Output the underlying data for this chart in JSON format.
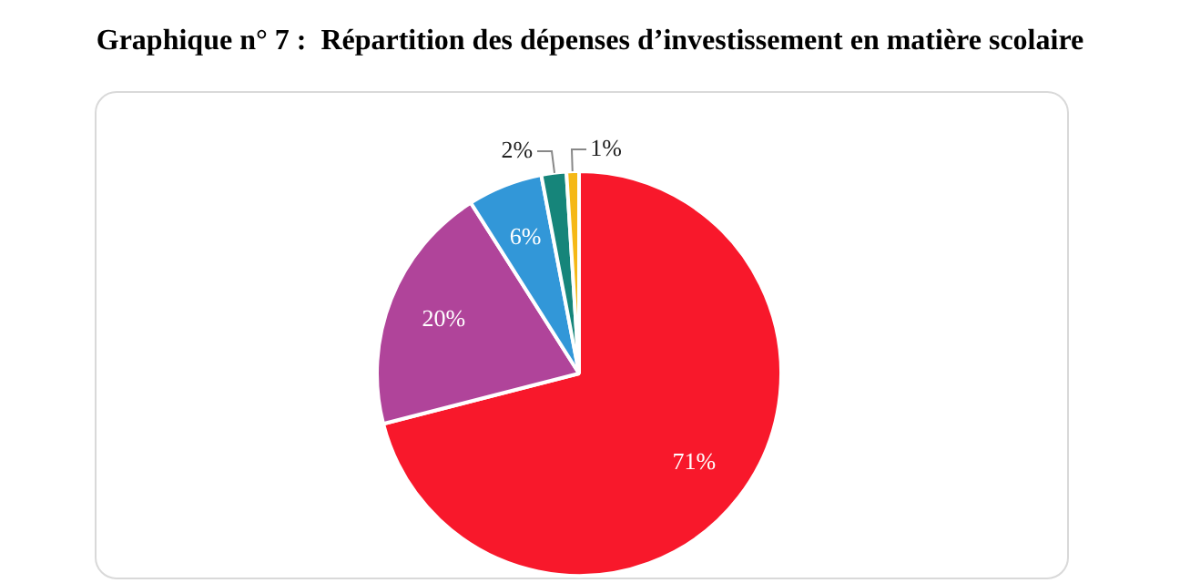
{
  "chart_data": {
    "type": "pie",
    "title": "Graphique n° 7 :  Répartition des dépenses d’investissement en matière scolaire",
    "categories": [
      null,
      null,
      null,
      null,
      null
    ],
    "values": [
      71,
      20,
      6,
      2,
      1
    ],
    "value_labels": [
      "71%",
      "20%",
      "6%",
      "2%",
      "1%"
    ],
    "colors": [
      "#f8182b",
      "#b0449a",
      "#3297d8",
      "#16857a",
      "#f5b816"
    ]
  }
}
